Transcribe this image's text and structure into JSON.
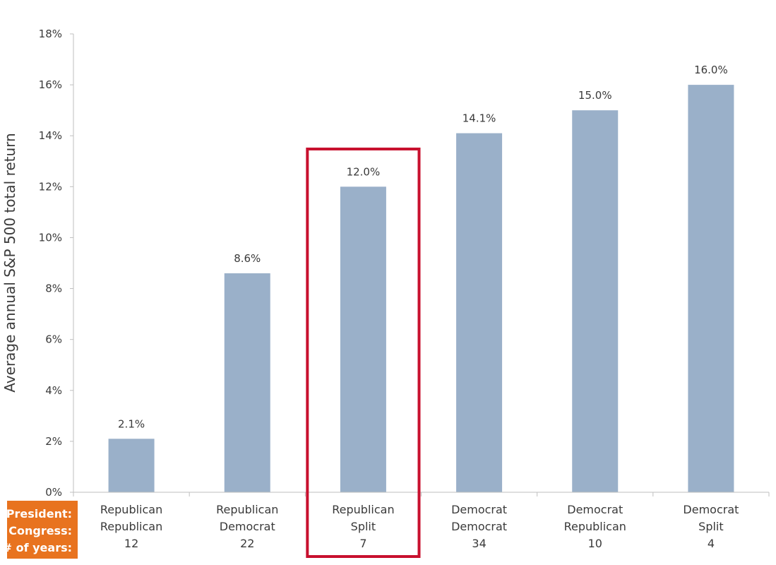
{
  "chart_data": {
    "type": "bar",
    "ylabel": "Average annual S&P 500 total return",
    "xlabel": "",
    "ylim": [
      0,
      18
    ],
    "yticks": [
      0,
      2,
      4,
      6,
      8,
      10,
      12,
      14,
      16,
      18
    ],
    "ytick_labels": [
      "0%",
      "2%",
      "4%",
      "6%",
      "8%",
      "10%",
      "12%",
      "14%",
      "16%",
      "18%"
    ],
    "grid": false,
    "row_labels": [
      "President:",
      "Congress:",
      "# of years:"
    ],
    "categories": [
      {
        "president": "Republican",
        "congress": "Republican",
        "years": "12"
      },
      {
        "president": "Republican",
        "congress": "Democrat",
        "years": "22"
      },
      {
        "president": "Republican",
        "congress": "Split",
        "years": "7"
      },
      {
        "president": "Democrat",
        "congress": "Democrat",
        "years": "34"
      },
      {
        "president": "Democrat",
        "congress": "Republican",
        "years": "10"
      },
      {
        "president": "Democrat",
        "congress": "Split",
        "years": "4"
      }
    ],
    "values": [
      2.1,
      8.6,
      12.0,
      14.1,
      15.0,
      16.0
    ],
    "data_labels": [
      "2.1%",
      "8.6%",
      "12.0%",
      "14.1%",
      "15.0%",
      "16.0%"
    ],
    "highlighted_category_index": 2,
    "colors": {
      "bar": "#9ab0c9",
      "highlight_box": "#c8102e",
      "row_label_bg": "#e8731f",
      "axis": "#bfbfbf"
    }
  }
}
